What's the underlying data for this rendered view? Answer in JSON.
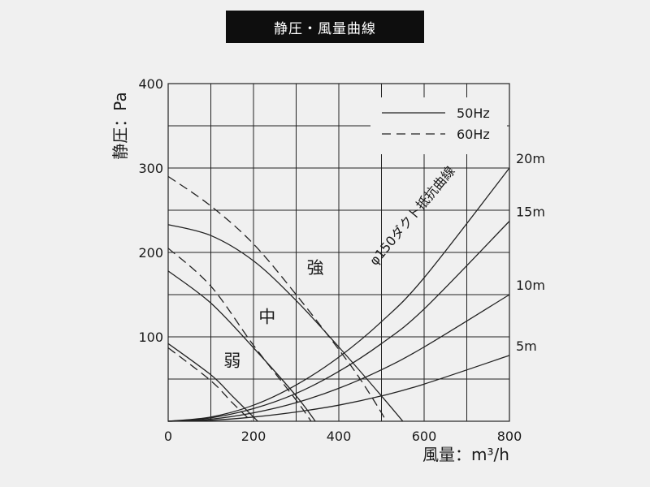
{
  "title": "静圧・風量曲線",
  "chart_data": {
    "type": "line",
    "xlabel": "風量：m³/h",
    "ylabel": "静圧：Pa",
    "xlim": [
      0,
      800
    ],
    "ylim": [
      0,
      400
    ],
    "xticks": [
      "0",
      "200",
      "400",
      "600",
      "800"
    ],
    "yticks": [
      "100",
      "200",
      "300",
      "400"
    ],
    "grid": true,
    "legend": [
      {
        "name": "50Hz",
        "style": "solid"
      },
      {
        "name": "60Hz",
        "style": "dashed"
      }
    ],
    "legend_position": "top-right",
    "series": [
      {
        "name": "強",
        "line": "50Hz",
        "x": [
          0,
          100,
          200,
          300,
          400,
          500,
          550
        ],
        "y": [
          233,
          220,
          190,
          143,
          88,
          30,
          0
        ]
      },
      {
        "name": "強",
        "line": "60Hz",
        "x": [
          0,
          100,
          200,
          300,
          400,
          450,
          500,
          510
        ],
        "y": [
          290,
          255,
          210,
          150,
          85,
          50,
          10,
          0
        ]
      },
      {
        "name": "中",
        "line": "50Hz",
        "x": [
          0,
          100,
          200,
          300,
          345
        ],
        "y": [
          178,
          140,
          87,
          30,
          0
        ]
      },
      {
        "name": "中",
        "line": "60Hz",
        "x": [
          0,
          100,
          200,
          300,
          335
        ],
        "y": [
          205,
          160,
          90,
          25,
          0
        ]
      },
      {
        "name": "弱",
        "line": "50Hz",
        "x": [
          0,
          100,
          150,
          200,
          210
        ],
        "y": [
          92,
          55,
          30,
          5,
          0
        ]
      },
      {
        "name": "弱",
        "line": "60Hz",
        "x": [
          0,
          100,
          150,
          195
        ],
        "y": [
          87,
          48,
          22,
          0
        ]
      }
    ],
    "resistance_curves": [
      {
        "label": "20m",
        "x": [
          0,
          100,
          200,
          300,
          400,
          500,
          600,
          800
        ],
        "y": [
          0,
          5,
          19,
          43,
          76,
          118,
          170,
          300
        ]
      },
      {
        "label": "15m",
        "x": [
          0,
          100,
          200,
          300,
          400,
          500,
          600,
          800
        ],
        "y": [
          0,
          4,
          15,
          33,
          59,
          92,
          133,
          237
        ]
      },
      {
        "label": "10m",
        "x": [
          0,
          100,
          200,
          300,
          400,
          500,
          600,
          800
        ],
        "y": [
          0,
          2.5,
          10,
          22,
          39,
          61,
          88,
          150
        ]
      },
      {
        "label": "5m",
        "x": [
          0,
          100,
          200,
          300,
          400,
          500,
          600,
          800
        ],
        "y": [
          0,
          1.2,
          5,
          11,
          19,
          30,
          44,
          78
        ]
      }
    ],
    "annotations": [
      {
        "text": "強",
        "x": 345,
        "y": 175
      },
      {
        "text": "中",
        "x": 232,
        "y": 117
      },
      {
        "text": "弱",
        "x": 150,
        "y": 65
      },
      {
        "text": "φ150ダクト抵抗曲線",
        "x": 580,
        "y": 240
      }
    ]
  }
}
